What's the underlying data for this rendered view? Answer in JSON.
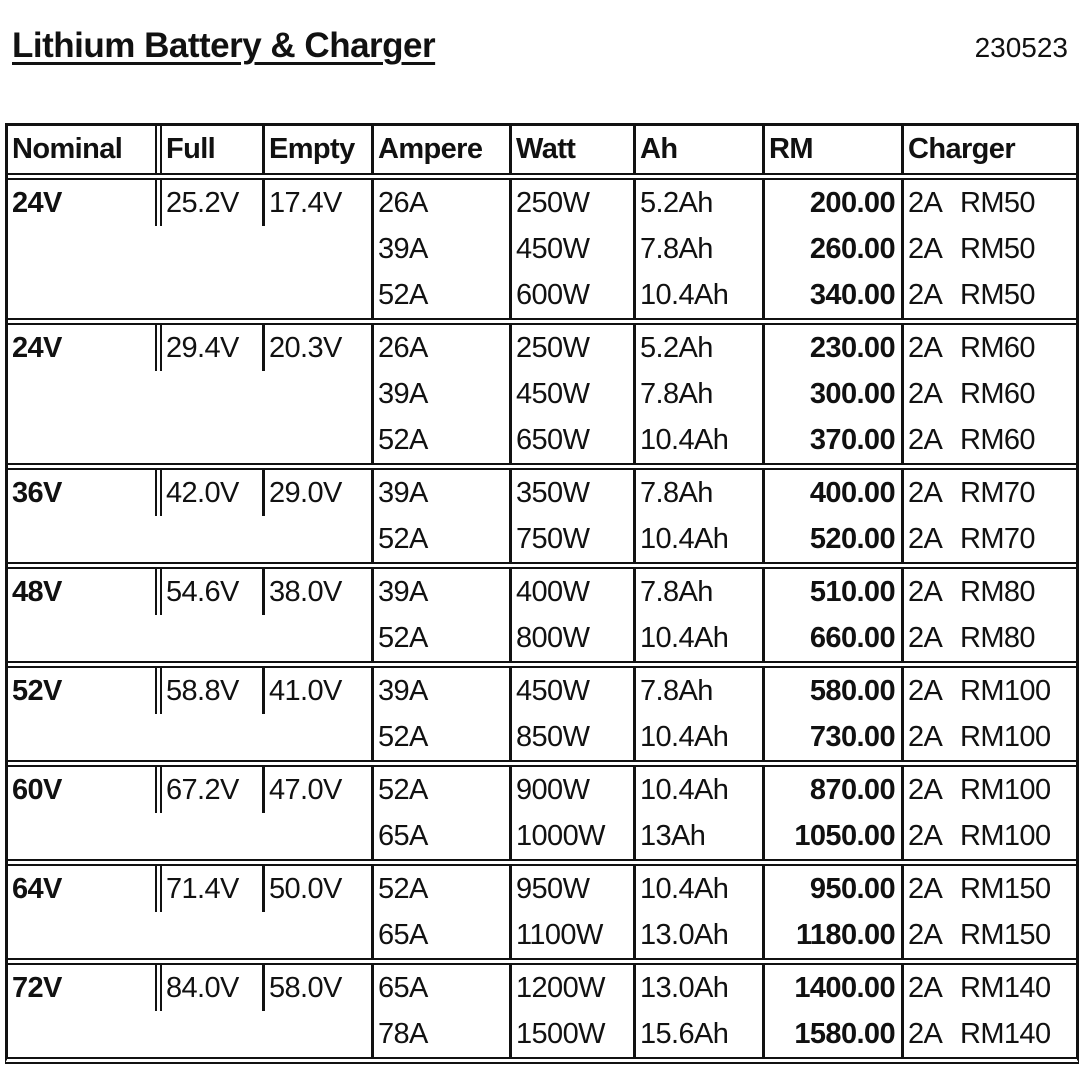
{
  "title": "Lithium Battery & Charger",
  "code": "230523",
  "headers": [
    "Nominal",
    "Full",
    "Empty",
    "Ampere",
    "Watt",
    "Ah",
    "RM",
    "Charger"
  ],
  "groups": [
    {
      "nominal": "24V",
      "full": "25.2V",
      "empty": "17.4V",
      "rows": [
        {
          "ampere": "26A",
          "watt": "250W",
          "ah": "5.2Ah",
          "rm": "200.00",
          "charger_a": "2A",
          "charger_rm": "RM50"
        },
        {
          "ampere": "39A",
          "watt": "450W",
          "ah": "7.8Ah",
          "rm": "260.00",
          "charger_a": "2A",
          "charger_rm": "RM50"
        },
        {
          "ampere": "52A",
          "watt": "600W",
          "ah": "10.4Ah",
          "rm": "340.00",
          "charger_a": "2A",
          "charger_rm": "RM50"
        }
      ]
    },
    {
      "nominal": "24V",
      "full": "29.4V",
      "empty": "20.3V",
      "rows": [
        {
          "ampere": "26A",
          "watt": "250W",
          "ah": "5.2Ah",
          "rm": "230.00",
          "charger_a": "2A",
          "charger_rm": "RM60"
        },
        {
          "ampere": "39A",
          "watt": "450W",
          "ah": "7.8Ah",
          "rm": "300.00",
          "charger_a": "2A",
          "charger_rm": "RM60"
        },
        {
          "ampere": "52A",
          "watt": "650W",
          "ah": "10.4Ah",
          "rm": "370.00",
          "charger_a": "2A",
          "charger_rm": "RM60"
        }
      ]
    },
    {
      "nominal": "36V",
      "full": "42.0V",
      "empty": "29.0V",
      "rows": [
        {
          "ampere": "39A",
          "watt": "350W",
          "ah": "7.8Ah",
          "rm": "400.00",
          "charger_a": "2A",
          "charger_rm": "RM70"
        },
        {
          "ampere": "52A",
          "watt": "750W",
          "ah": "10.4Ah",
          "rm": "520.00",
          "charger_a": "2A",
          "charger_rm": "RM70"
        }
      ]
    },
    {
      "nominal": "48V",
      "full": "54.6V",
      "empty": "38.0V",
      "rows": [
        {
          "ampere": "39A",
          "watt": "400W",
          "ah": "7.8Ah",
          "rm": "510.00",
          "charger_a": "2A",
          "charger_rm": "RM80"
        },
        {
          "ampere": "52A",
          "watt": "800W",
          "ah": "10.4Ah",
          "rm": "660.00",
          "charger_a": "2A",
          "charger_rm": "RM80"
        }
      ]
    },
    {
      "nominal": "52V",
      "full": "58.8V",
      "empty": "41.0V",
      "rows": [
        {
          "ampere": "39A",
          "watt": "450W",
          "ah": "7.8Ah",
          "rm": "580.00",
          "charger_a": "2A",
          "charger_rm": "RM100"
        },
        {
          "ampere": "52A",
          "watt": "850W",
          "ah": "10.4Ah",
          "rm": "730.00",
          "charger_a": "2A",
          "charger_rm": "RM100"
        }
      ]
    },
    {
      "nominal": "60V",
      "full": "67.2V",
      "empty": "47.0V",
      "rows": [
        {
          "ampere": "52A",
          "watt": "900W",
          "ah": "10.4Ah",
          "rm": "870.00",
          "charger_a": "2A",
          "charger_rm": "RM100"
        },
        {
          "ampere": "65A",
          "watt": "1000W",
          "ah": "13Ah",
          "rm": "1050.00",
          "charger_a": "2A",
          "charger_rm": "RM100"
        }
      ]
    },
    {
      "nominal": "64V",
      "full": "71.4V",
      "empty": "50.0V",
      "rows": [
        {
          "ampere": "52A",
          "watt": "950W",
          "ah": "10.4Ah",
          "rm": "950.00",
          "charger_a": "2A",
          "charger_rm": "RM150"
        },
        {
          "ampere": "65A",
          "watt": "1100W",
          "ah": "13.0Ah",
          "rm": "1180.00",
          "charger_a": "2A",
          "charger_rm": "RM150"
        }
      ]
    },
    {
      "nominal": "72V",
      "full": "84.0V",
      "empty": "58.0V",
      "rows": [
        {
          "ampere": "65A",
          "watt": "1200W",
          "ah": "13.0Ah",
          "rm": "1400.00",
          "charger_a": "2A",
          "charger_rm": "RM140"
        },
        {
          "ampere": "78A",
          "watt": "1500W",
          "ah": "15.6Ah",
          "rm": "1580.00",
          "charger_a": "2A",
          "charger_rm": "RM140"
        }
      ]
    }
  ]
}
